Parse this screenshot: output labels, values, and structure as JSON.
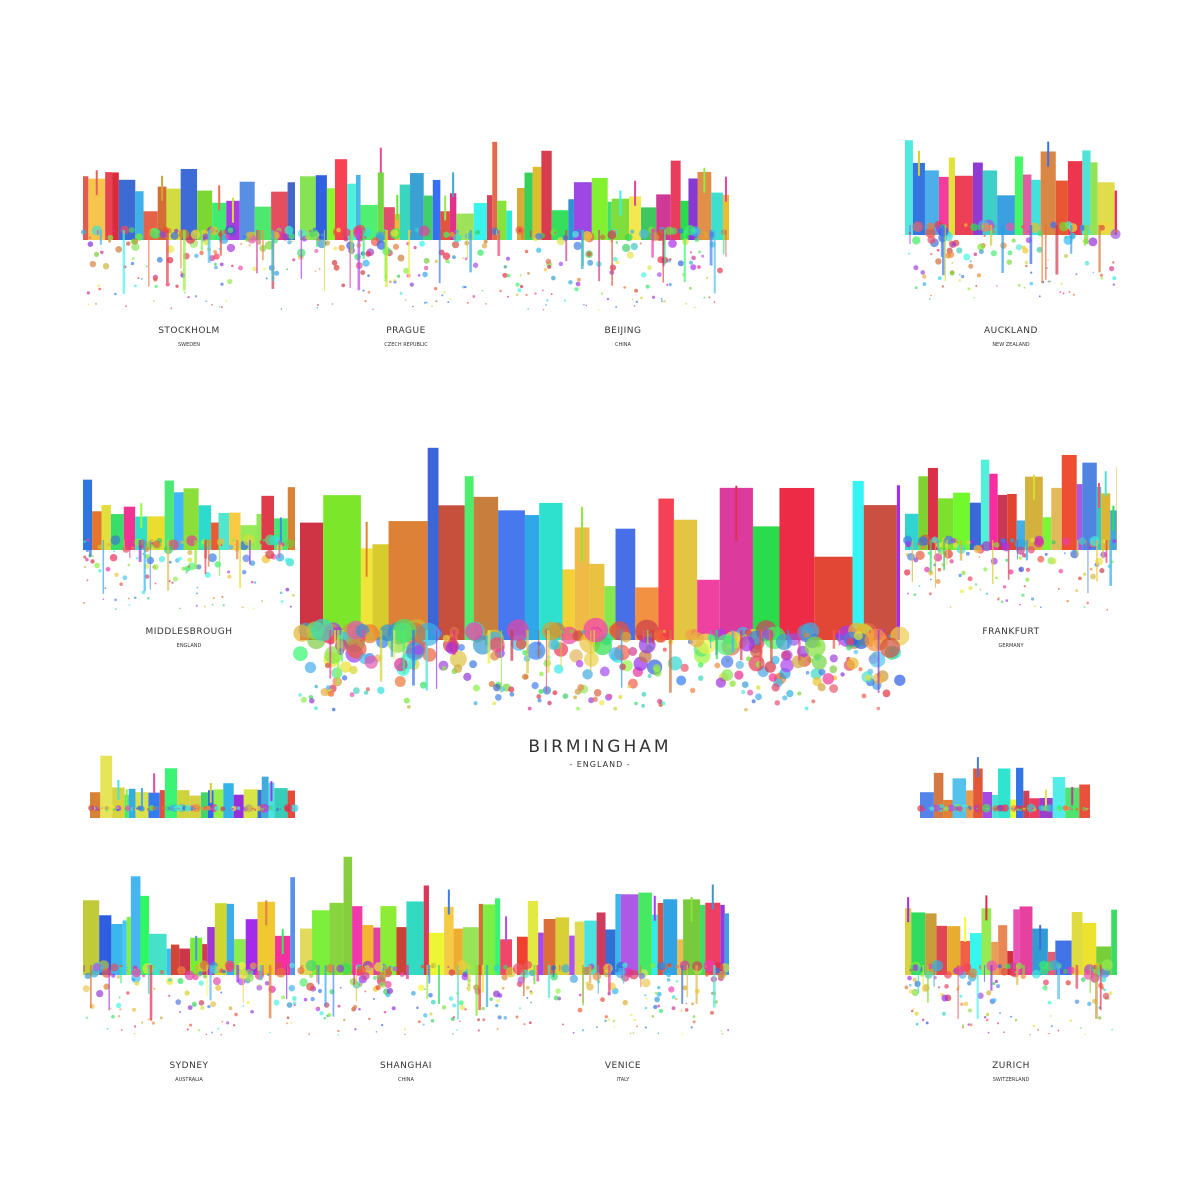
{
  "featured": {
    "city": "BIRMINGHAM",
    "country": "- ENGLAND -"
  },
  "skylines": [
    {
      "city": "STOCKHOLM",
      "country": "SWEDEN"
    },
    {
      "city": "PRAGUE",
      "country": "CZECH REPUBLIC"
    },
    {
      "city": "BEIJING",
      "country": "CHINA"
    },
    {
      "city": "AUCKLAND",
      "country": "NEW ZEALAND"
    },
    {
      "city": "MIDDLESBROUGH",
      "country": "ENGLAND"
    },
    {
      "city": "FRANKFURT",
      "country": "GERMANY"
    },
    {
      "city": "SYDNEY",
      "country": "AUSTRALIA"
    },
    {
      "city": "SHANGHAI",
      "country": "CHINA"
    },
    {
      "city": "VENICE",
      "country": "ITALY"
    },
    {
      "city": "ZURICH",
      "country": "SWITZERLAND"
    }
  ]
}
